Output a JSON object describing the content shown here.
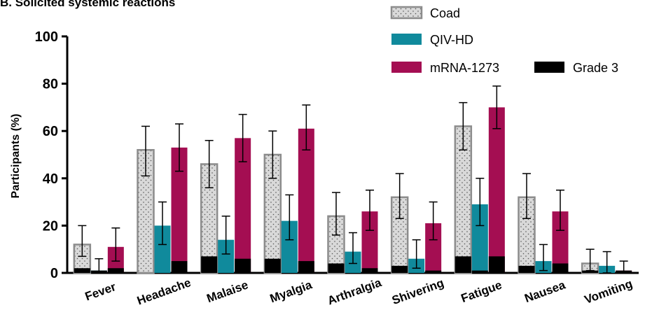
{
  "chart_data": {
    "type": "bar",
    "title": "B. Solicited systemic reactions",
    "xlabel": "",
    "ylabel": "Participants  (%)",
    "ylim": [
      0,
      100
    ],
    "yticks": [
      0,
      20,
      40,
      60,
      80,
      100
    ],
    "grid": false,
    "legend_position": "top-right",
    "categories": [
      "Fever",
      "Headache",
      "Malaise",
      "Myalgia",
      "Arthralgia",
      "Shivering",
      "Fatigue",
      "Nausea",
      "Vomiting"
    ],
    "series": [
      {
        "name": "Coad",
        "color": "#d9d9d9",
        "pattern": "dotted",
        "values": [
          12,
          52,
          46,
          50,
          24,
          32,
          62,
          32,
          4
        ],
        "ci_low": [
          7,
          41,
          36,
          40,
          16,
          23,
          52,
          23,
          1
        ],
        "ci_high": [
          20,
          62,
          56,
          60,
          34,
          42,
          72,
          42,
          10
        ],
        "grade3": [
          2,
          0,
          7,
          6,
          4,
          3,
          7,
          3,
          1
        ]
      },
      {
        "name": "QIV-HD",
        "color": "#108a9c",
        "values": [
          1,
          20,
          14,
          22,
          9,
          6,
          29,
          5,
          3
        ],
        "ci_low": [
          0,
          12,
          8,
          14,
          4,
          2,
          20,
          1,
          0
        ],
        "ci_high": [
          6,
          30,
          24,
          33,
          17,
          14,
          40,
          12,
          9
        ],
        "grade3": [
          1,
          0,
          0,
          0,
          0,
          0,
          1,
          0,
          0
        ]
      },
      {
        "name": "mRNA-1273",
        "color": "#a40e52",
        "values": [
          11,
          53,
          57,
          61,
          26,
          21,
          70,
          26,
          1
        ],
        "ci_low": [
          5,
          43,
          47,
          52,
          18,
          14,
          61,
          18,
          0
        ],
        "ci_high": [
          19,
          63,
          67,
          71,
          35,
          30,
          79,
          35,
          5
        ],
        "grade3": [
          2,
          5,
          6,
          5,
          2,
          1,
          7,
          4,
          1
        ]
      }
    ],
    "overlay": {
      "name": "Grade 3",
      "color": "#000000"
    }
  }
}
